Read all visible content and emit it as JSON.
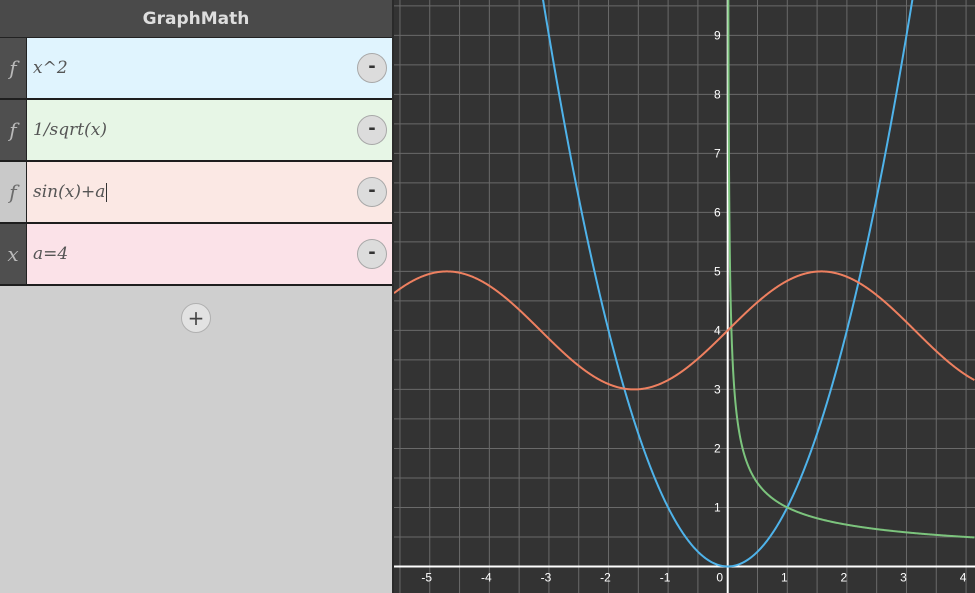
{
  "app": {
    "title": "GraphMath"
  },
  "expressions": [
    {
      "type_symbol": "f",
      "text": "x^2",
      "bg": "#e0f4fe"
    },
    {
      "type_symbol": "f",
      "text": "1/sqrt(x)",
      "bg": "#e7f6e6"
    },
    {
      "type_symbol": "f",
      "text": "sin(x)+a",
      "bg": "#fbe8e4",
      "selected": true
    },
    {
      "type_symbol": "x",
      "text": "a=4",
      "bg": "#fbe2e8"
    }
  ],
  "controls": {
    "remove_label": "-",
    "add_label": "+"
  },
  "chart_data": {
    "type": "line",
    "xlim": [
      -5.6,
      4.15
    ],
    "ylim": [
      -0.45,
      9.6
    ],
    "grid": true,
    "x_ticks": [
      "-5",
      "-4",
      "-3",
      "-2",
      "-1",
      "0",
      "1",
      "2",
      "3",
      "4"
    ],
    "y_ticks": [
      "1",
      "2",
      "3",
      "4",
      "5",
      "6",
      "7",
      "8",
      "9"
    ],
    "parameters": {
      "a": 4
    },
    "series": [
      {
        "expression": "x^2",
        "color": "#4fb3ea"
      },
      {
        "expression": "1/sqrt(x)",
        "color": "#7cc47d"
      },
      {
        "expression": "sin(x)+a",
        "color": "#ee8060"
      }
    ],
    "colors": {
      "background": "#333333",
      "grid": "#6a6a6a",
      "axis": "#ffffff",
      "tick_label": "#ffffff"
    }
  }
}
